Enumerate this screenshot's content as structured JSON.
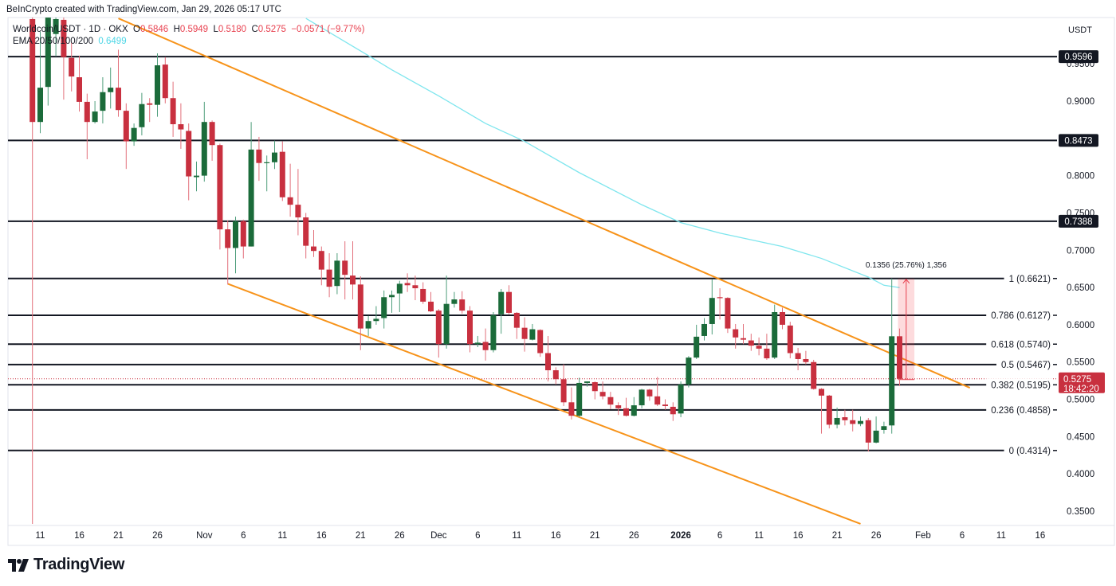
{
  "header": {
    "attribution": "BeInCrypto created with TradingView.com, Jan 29, 2026 05:17 UTC"
  },
  "legend": {
    "symbol": "Worldcoin/USDT · 1D · OKX",
    "o_label": "O",
    "o": "0.5846",
    "h_label": "H",
    "h": "0.5949",
    "l_label": "L",
    "l": "0.5180",
    "c_label": "C",
    "c": "0.5275",
    "change": "−0.0571 (−9.77%)",
    "ema_label": "EMA 20/50/100/200",
    "ema_value": "0.6499"
  },
  "axis_currency": "USDT",
  "logo": {
    "text": "TradingView"
  },
  "colors": {
    "up": "#1b6b3a",
    "down": "#c8303f",
    "up_wick": "#4f9e7c",
    "down_wick": "#e2707b",
    "trend": "#f7931a",
    "ema": "#7fe6ee",
    "level": "#131722",
    "last_price": "#c8303f"
  },
  "chart_data": {
    "type": "candlestick",
    "ylim": [
      0.3308,
      1.0121
    ],
    "grid": false,
    "y_ticks": [
      "0.9500",
      "0.9000",
      "0.8000",
      "0.7500",
      "0.7000",
      "0.6500",
      "0.6000",
      "0.5500",
      "0.5000",
      "0.4500",
      "0.4000",
      "0.3500"
    ],
    "x_ticks": [
      {
        "date": "2025-10-11",
        "label": "11"
      },
      {
        "date": "2025-10-16",
        "label": "16"
      },
      {
        "date": "2025-10-21",
        "label": "21"
      },
      {
        "date": "2025-10-26",
        "label": "26"
      },
      {
        "date": "2025-11-01",
        "label": "Nov"
      },
      {
        "date": "2025-11-06",
        "label": "6"
      },
      {
        "date": "2025-11-11",
        "label": "11"
      },
      {
        "date": "2025-11-16",
        "label": "16"
      },
      {
        "date": "2025-11-21",
        "label": "21"
      },
      {
        "date": "2025-11-26",
        "label": "26"
      },
      {
        "date": "2025-12-01",
        "label": "Dec"
      },
      {
        "date": "2025-12-06",
        "label": "6"
      },
      {
        "date": "2025-12-11",
        "label": "11"
      },
      {
        "date": "2025-12-16",
        "label": "16"
      },
      {
        "date": "2025-12-21",
        "label": "21"
      },
      {
        "date": "2025-12-26",
        "label": "26"
      },
      {
        "date": "2026-01-01",
        "label": "2026",
        "bold": true
      },
      {
        "date": "2026-01-06",
        "label": "6"
      },
      {
        "date": "2026-01-11",
        "label": "11"
      },
      {
        "date": "2026-01-16",
        "label": "16"
      },
      {
        "date": "2026-01-21",
        "label": "21"
      },
      {
        "date": "2026-01-26",
        "label": "26"
      },
      {
        "date": "2026-02-01",
        "label": "Feb"
      },
      {
        "date": "2026-02-06",
        "label": "6"
      },
      {
        "date": "2026-02-11",
        "label": "11"
      },
      {
        "date": "2026-02-16",
        "label": "16"
      }
    ],
    "candles_columns": [
      "date",
      "open",
      "high",
      "low",
      "close"
    ],
    "candles": [
      [
        "2025-10-10",
        1.01,
        1.03,
        0.333,
        0.872
      ],
      [
        "2025-10-11",
        0.872,
        0.993,
        0.857,
        0.918
      ],
      [
        "2025-10-12",
        0.919,
        1.03,
        0.894,
        1.012
      ],
      [
        "2025-10-13",
        0.99,
        1.02,
        0.96,
        1.01
      ],
      [
        "2025-10-14",
        1.009,
        1.015,
        0.902,
        0.959
      ],
      [
        "2025-10-15",
        0.958,
        0.979,
        0.913,
        0.933
      ],
      [
        "2025-10-16",
        0.932,
        0.961,
        0.886,
        0.899
      ],
      [
        "2025-10-17",
        0.899,
        0.91,
        0.822,
        0.872
      ],
      [
        "2025-10-18",
        0.872,
        0.9,
        0.87,
        0.886
      ],
      [
        "2025-10-19",
        0.887,
        0.932,
        0.87,
        0.912
      ],
      [
        "2025-10-20",
        0.912,
        0.945,
        0.89,
        0.918
      ],
      [
        "2025-10-21",
        0.918,
        0.969,
        0.879,
        0.888
      ],
      [
        "2025-10-22",
        0.887,
        0.897,
        0.809,
        0.846
      ],
      [
        "2025-10-23",
        0.846,
        0.87,
        0.84,
        0.864
      ],
      [
        "2025-10-24",
        0.865,
        0.911,
        0.854,
        0.896
      ],
      [
        "2025-10-25",
        0.897,
        0.904,
        0.872,
        0.895
      ],
      [
        "2025-10-26",
        0.895,
        0.964,
        0.879,
        0.948
      ],
      [
        "2025-10-27",
        0.949,
        0.959,
        0.897,
        0.904
      ],
      [
        "2025-10-28",
        0.904,
        0.926,
        0.852,
        0.869
      ],
      [
        "2025-10-29",
        0.869,
        0.897,
        0.836,
        0.862
      ],
      [
        "2025-10-30",
        0.86,
        0.87,
        0.767,
        0.799
      ],
      [
        "2025-10-31",
        0.798,
        0.819,
        0.779,
        0.8
      ],
      [
        "2025-11-01",
        0.8,
        0.899,
        0.792,
        0.872
      ],
      [
        "2025-11-02",
        0.872,
        0.874,
        0.82,
        0.841
      ],
      [
        "2025-11-03",
        0.841,
        0.843,
        0.701,
        0.728
      ],
      [
        "2025-11-04",
        0.728,
        0.74,
        0.654,
        0.703
      ],
      [
        "2025-11-05",
        0.703,
        0.745,
        0.669,
        0.739
      ],
      [
        "2025-11-06",
        0.739,
        0.741,
        0.689,
        0.705
      ],
      [
        "2025-11-07",
        0.705,
        0.872,
        0.705,
        0.835
      ],
      [
        "2025-11-08",
        0.835,
        0.852,
        0.793,
        0.817
      ],
      [
        "2025-11-09",
        0.817,
        0.827,
        0.779,
        0.818
      ],
      [
        "2025-11-10",
        0.818,
        0.847,
        0.809,
        0.831
      ],
      [
        "2025-11-11",
        0.832,
        0.846,
        0.766,
        0.771
      ],
      [
        "2025-11-12",
        0.771,
        0.816,
        0.745,
        0.761
      ],
      [
        "2025-11-13",
        0.761,
        0.809,
        0.72,
        0.744
      ],
      [
        "2025-11-14",
        0.744,
        0.75,
        0.689,
        0.706
      ],
      [
        "2025-11-15",
        0.705,
        0.727,
        0.691,
        0.699
      ],
      [
        "2025-11-16",
        0.699,
        0.705,
        0.653,
        0.674
      ],
      [
        "2025-11-17",
        0.674,
        0.696,
        0.637,
        0.651
      ],
      [
        "2025-11-18",
        0.652,
        0.696,
        0.641,
        0.686
      ],
      [
        "2025-11-19",
        0.686,
        0.712,
        0.634,
        0.667
      ],
      [
        "2025-11-20",
        0.666,
        0.712,
        0.634,
        0.654
      ],
      [
        "2025-11-21",
        0.654,
        0.665,
        0.566,
        0.595
      ],
      [
        "2025-11-22",
        0.595,
        0.612,
        0.585,
        0.605
      ],
      [
        "2025-11-23",
        0.605,
        0.625,
        0.6,
        0.608
      ],
      [
        "2025-11-24",
        0.609,
        0.646,
        0.595,
        0.637
      ],
      [
        "2025-11-25",
        0.637,
        0.646,
        0.616,
        0.64
      ],
      [
        "2025-11-26",
        0.642,
        0.659,
        0.617,
        0.655
      ],
      [
        "2025-11-27",
        0.656,
        0.669,
        0.644,
        0.653
      ],
      [
        "2025-11-28",
        0.653,
        0.666,
        0.633,
        0.649
      ],
      [
        "2025-11-29",
        0.648,
        0.657,
        0.628,
        0.631
      ],
      [
        "2025-11-30",
        0.631,
        0.644,
        0.617,
        0.618
      ],
      [
        "2025-12-01",
        0.619,
        0.621,
        0.556,
        0.574
      ],
      [
        "2025-12-02",
        0.574,
        0.666,
        0.568,
        0.628
      ],
      [
        "2025-12-03",
        0.628,
        0.644,
        0.623,
        0.634
      ],
      [
        "2025-12-04",
        0.634,
        0.645,
        0.615,
        0.619
      ],
      [
        "2025-12-05",
        0.619,
        0.625,
        0.563,
        0.574
      ],
      [
        "2025-12-06",
        0.574,
        0.585,
        0.57,
        0.576
      ],
      [
        "2025-12-07",
        0.577,
        0.595,
        0.552,
        0.566
      ],
      [
        "2025-12-08",
        0.566,
        0.617,
        0.563,
        0.613
      ],
      [
        "2025-12-09",
        0.614,
        0.648,
        0.588,
        0.644
      ],
      [
        "2025-12-10",
        0.644,
        0.653,
        0.614,
        0.616
      ],
      [
        "2025-12-11",
        0.616,
        0.617,
        0.581,
        0.596
      ],
      [
        "2025-12-12",
        0.596,
        0.61,
        0.564,
        0.581
      ],
      [
        "2025-12-13",
        0.58,
        0.601,
        0.579,
        0.594
      ],
      [
        "2025-12-14",
        0.593,
        0.594,
        0.557,
        0.562
      ],
      [
        "2025-12-15",
        0.562,
        0.585,
        0.524,
        0.539
      ],
      [
        "2025-12-16",
        0.539,
        0.543,
        0.52,
        0.527
      ],
      [
        "2025-12-17",
        0.527,
        0.547,
        0.491,
        0.496
      ],
      [
        "2025-12-18",
        0.496,
        0.516,
        0.473,
        0.478
      ],
      [
        "2025-12-19",
        0.478,
        0.529,
        0.476,
        0.522
      ],
      [
        "2025-12-20",
        0.522,
        0.524,
        0.517,
        0.524
      ],
      [
        "2025-12-21",
        0.523,
        0.524,
        0.5,
        0.511
      ],
      [
        "2025-12-22",
        0.51,
        0.524,
        0.5,
        0.504
      ],
      [
        "2025-12-23",
        0.503,
        0.51,
        0.487,
        0.493
      ],
      [
        "2025-12-24",
        0.492,
        0.496,
        0.479,
        0.488
      ],
      [
        "2025-12-25",
        0.488,
        0.502,
        0.477,
        0.478
      ],
      [
        "2025-12-26",
        0.478,
        0.503,
        0.477,
        0.492
      ],
      [
        "2025-12-27",
        0.492,
        0.514,
        0.488,
        0.513
      ],
      [
        "2025-12-28",
        0.513,
        0.514,
        0.498,
        0.504
      ],
      [
        "2025-12-29",
        0.504,
        0.53,
        0.491,
        0.493
      ],
      [
        "2025-12-30",
        0.493,
        0.5,
        0.486,
        0.491
      ],
      [
        "2025-12-31",
        0.49,
        0.496,
        0.471,
        0.48
      ],
      [
        "2026-01-01",
        0.481,
        0.524,
        0.476,
        0.52
      ],
      [
        "2026-01-02",
        0.52,
        0.558,
        0.516,
        0.556
      ],
      [
        "2026-01-03",
        0.556,
        0.6,
        0.554,
        0.584
      ],
      [
        "2026-01-04",
        0.585,
        0.609,
        0.579,
        0.601
      ],
      [
        "2026-01-05",
        0.601,
        0.661,
        0.587,
        0.636
      ],
      [
        "2026-01-06",
        0.637,
        0.649,
        0.607,
        0.636
      ],
      [
        "2026-01-07",
        0.636,
        0.637,
        0.589,
        0.595
      ],
      [
        "2026-01-08",
        0.594,
        0.601,
        0.568,
        0.583
      ],
      [
        "2026-01-09",
        0.582,
        0.601,
        0.574,
        0.58
      ],
      [
        "2026-01-10",
        0.579,
        0.588,
        0.565,
        0.572
      ],
      [
        "2026-01-11",
        0.572,
        0.583,
        0.559,
        0.568
      ],
      [
        "2026-01-12",
        0.568,
        0.588,
        0.553,
        0.555
      ],
      [
        "2026-01-13",
        0.556,
        0.627,
        0.554,
        0.617
      ],
      [
        "2026-01-14",
        0.617,
        0.623,
        0.594,
        0.6
      ],
      [
        "2026-01-15",
        0.599,
        0.604,
        0.555,
        0.562
      ],
      [
        "2026-01-16",
        0.562,
        0.569,
        0.539,
        0.554
      ],
      [
        "2026-01-17",
        0.554,
        0.565,
        0.547,
        0.55
      ],
      [
        "2026-01-18",
        0.55,
        0.553,
        0.513,
        0.514
      ],
      [
        "2026-01-19",
        0.514,
        0.515,
        0.454,
        0.505
      ],
      [
        "2026-01-20",
        0.505,
        0.506,
        0.461,
        0.466
      ],
      [
        "2026-01-21",
        0.466,
        0.489,
        0.461,
        0.475
      ],
      [
        "2026-01-22",
        0.476,
        0.486,
        0.465,
        0.472
      ],
      [
        "2026-01-23",
        0.472,
        0.486,
        0.457,
        0.467
      ],
      [
        "2026-01-24",
        0.467,
        0.477,
        0.464,
        0.471
      ],
      [
        "2026-01-25",
        0.472,
        0.475,
        0.43,
        0.442
      ],
      [
        "2026-01-26",
        0.442,
        0.477,
        0.441,
        0.458
      ],
      [
        "2026-01-27",
        0.459,
        0.47,
        0.454,
        0.464
      ],
      [
        "2026-01-28",
        0.465,
        0.6621,
        0.454,
        0.5846
      ],
      [
        "2026-01-29",
        0.5846,
        0.5949,
        0.518,
        0.5275
      ]
    ],
    "ema": [
      [
        "2025-11-14",
        1.011
      ],
      [
        "2025-11-22",
        0.961
      ],
      [
        "2025-11-25",
        0.942
      ],
      [
        "2025-12-01",
        0.907
      ],
      [
        "2025-12-07",
        0.87
      ],
      [
        "2025-12-12",
        0.846
      ],
      [
        "2025-12-19",
        0.804
      ],
      [
        "2025-12-27",
        0.761
      ],
      [
        "2026-01-01",
        0.737
      ],
      [
        "2026-01-06",
        0.723
      ],
      [
        "2026-01-14",
        0.705
      ],
      [
        "2026-01-19",
        0.689
      ],
      [
        "2026-01-25",
        0.664
      ],
      [
        "2026-01-27",
        0.653
      ],
      [
        "2026-01-29",
        0.6499
      ]
    ],
    "trendlines": [
      {
        "from": [
          "2025-10-21",
          1.011
        ],
        "to": [
          "2026-02-07",
          0.5155
        ]
      },
      {
        "from": [
          "2025-11-04",
          0.655
        ],
        "to": [
          "2026-01-24",
          0.333
        ]
      }
    ],
    "horizontal_levels": [
      {
        "price": 0.9596,
        "label": "0.9596"
      },
      {
        "price": 0.8473,
        "label": "0.8473"
      },
      {
        "price": 0.7388,
        "label": "0.7388"
      }
    ],
    "fib_levels": [
      {
        "price": 0.6621,
        "label": "1 (0.6621)"
      },
      {
        "price": 0.6127,
        "label": "0.786 (0.6127)"
      },
      {
        "price": 0.574,
        "label": "0.618 (0.5740)"
      },
      {
        "price": 0.5467,
        "label": "0.5 (0.5467)"
      },
      {
        "price": 0.5195,
        "label": "0.382 (0.5195)"
      },
      {
        "price": 0.4858,
        "label": "0.236 (0.4858)"
      },
      {
        "price": 0.4314,
        "label": "0 (0.4314)"
      }
    ],
    "last_price": {
      "price": 0.5275,
      "label": "0.5275",
      "countdown": "18:42:20"
    },
    "measure": {
      "from_date": "2026-01-29",
      "to_date": "2026-01-31",
      "low": 0.5265,
      "high": 0.6621,
      "label": "0.1356 (25.76%) 1,356"
    }
  }
}
